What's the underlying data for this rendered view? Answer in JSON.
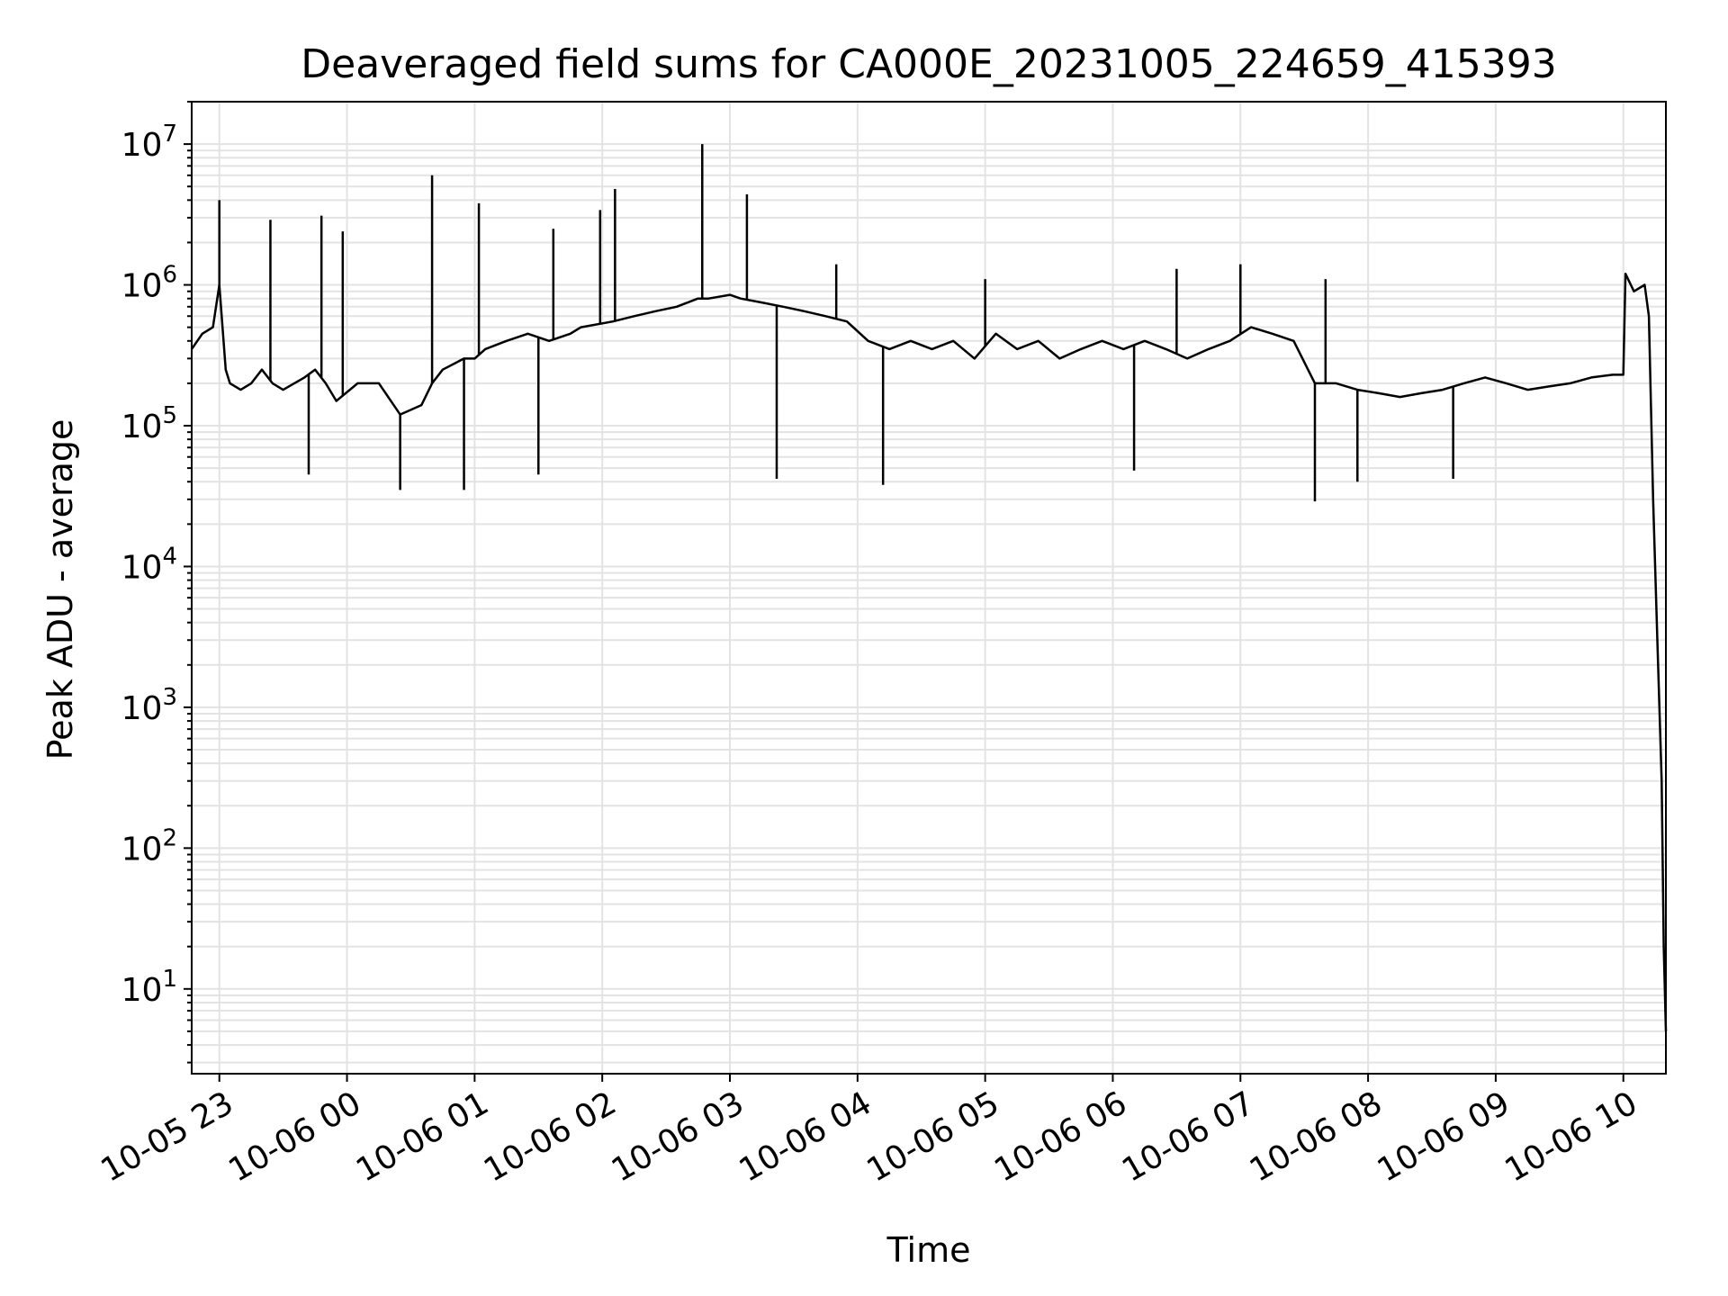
{
  "chart_data": {
    "type": "line",
    "title": "Deaveraged field sums for CA000E_20231005_224659_415393",
    "xlabel": "Time",
    "ylabel": "Peak ADU - average",
    "yscale": "log",
    "ylim": [
      2.5,
      20000000
    ],
    "xlim": [
      "2023-10-05 22:47",
      "2023-10-06 10:20"
    ],
    "grid": true,
    "line_color": "#000000",
    "grid_color": "#e3e3e3",
    "x_ticks": [
      "2023-10-05 23:00",
      "2023-10-06 00:00",
      "2023-10-06 01:00",
      "2023-10-06 02:00",
      "2023-10-06 03:00",
      "2023-10-06 04:00",
      "2023-10-06 05:00",
      "2023-10-06 06:00",
      "2023-10-06 07:00",
      "2023-10-06 08:00",
      "2023-10-06 09:00",
      "2023-10-06 10:00"
    ],
    "x_tick_labels": [
      "10-05 23",
      "10-06 00",
      "10-06 01",
      "10-06 02",
      "10-06 03",
      "10-06 04",
      "10-06 05",
      "10-06 06",
      "10-06 07",
      "10-06 08",
      "10-06 09",
      "10-06 10"
    ],
    "y_ticks": [
      10,
      100,
      1000,
      10000,
      100000,
      1000000,
      10000000
    ],
    "y_tick_labels": [
      {
        "base": "10",
        "exp": "1"
      },
      {
        "base": "10",
        "exp": "2"
      },
      {
        "base": "10",
        "exp": "3"
      },
      {
        "base": "10",
        "exp": "4"
      },
      {
        "base": "10",
        "exp": "5"
      },
      {
        "base": "10",
        "exp": "6"
      },
      {
        "base": "10",
        "exp": "7"
      }
    ],
    "series": [
      {
        "x": [
          "2023-10-05 22:47",
          "2023-10-05 22:52",
          "2023-10-05 22:57",
          "2023-10-05 23:00",
          "2023-10-05 23:03",
          "2023-10-05 23:05",
          "2023-10-05 23:10",
          "2023-10-05 23:15",
          "2023-10-05 23:20",
          "2023-10-05 23:25",
          "2023-10-05 23:30",
          "2023-10-05 23:40",
          "2023-10-05 23:45",
          "2023-10-05 23:50",
          "2023-10-05 23:55",
          "2023-10-06 00:05",
          "2023-10-06 00:15",
          "2023-10-06 00:25",
          "2023-10-06 00:35",
          "2023-10-06 00:40",
          "2023-10-06 00:45",
          "2023-10-06 00:55",
          "2023-10-06 01:00",
          "2023-10-06 01:05",
          "2023-10-06 01:15",
          "2023-10-06 01:25",
          "2023-10-06 01:35",
          "2023-10-06 01:45",
          "2023-10-06 01:50",
          "2023-10-06 02:05",
          "2023-10-06 02:15",
          "2023-10-06 02:25",
          "2023-10-06 02:35",
          "2023-10-06 02:45",
          "2023-10-06 02:50",
          "2023-10-06 03:00",
          "2023-10-06 03:05",
          "2023-10-06 03:15",
          "2023-10-06 03:25",
          "2023-10-06 03:35",
          "2023-10-06 03:45",
          "2023-10-06 03:55",
          "2023-10-06 04:05",
          "2023-10-06 04:15",
          "2023-10-06 04:25",
          "2023-10-06 04:35",
          "2023-10-06 04:45",
          "2023-10-06 04:55",
          "2023-10-06 05:05",
          "2023-10-06 05:15",
          "2023-10-06 05:25",
          "2023-10-06 05:35",
          "2023-10-06 05:45",
          "2023-10-06 05:55",
          "2023-10-06 06:05",
          "2023-10-06 06:15",
          "2023-10-06 06:25",
          "2023-10-06 06:35",
          "2023-10-06 06:45",
          "2023-10-06 06:55",
          "2023-10-06 07:05",
          "2023-10-06 07:15",
          "2023-10-06 07:25",
          "2023-10-06 07:35",
          "2023-10-06 07:45",
          "2023-10-06 07:55",
          "2023-10-06 08:05",
          "2023-10-06 08:15",
          "2023-10-06 08:25",
          "2023-10-06 08:35",
          "2023-10-06 08:45",
          "2023-10-06 08:55",
          "2023-10-06 09:05",
          "2023-10-06 09:15",
          "2023-10-06 09:25",
          "2023-10-06 09:35",
          "2023-10-06 09:45",
          "2023-10-06 09:55",
          "2023-10-06 10:00",
          "2023-10-06 10:01",
          "2023-10-06 10:05",
          "2023-10-06 10:10",
          "2023-10-06 10:12",
          "2023-10-06 10:14",
          "2023-10-06 10:16",
          "2023-10-06 10:18",
          "2023-10-06 10:19",
          "2023-10-06 10:20"
        ],
        "y": [
          350000,
          450000,
          500000,
          1000000,
          250000,
          200000,
          180000,
          200000,
          250000,
          200000,
          180000,
          220000,
          250000,
          200000,
          150000,
          200000,
          200000,
          120000,
          140000,
          200000,
          250000,
          300000,
          300000,
          350000,
          400000,
          450000,
          400000,
          450000,
          500000,
          550000,
          600000,
          650000,
          700000,
          800000,
          800000,
          850000,
          800000,
          750000,
          700000,
          650000,
          600000,
          550000,
          400000,
          350000,
          400000,
          350000,
          400000,
          300000,
          450000,
          350000,
          400000,
          300000,
          350000,
          400000,
          350000,
          400000,
          350000,
          300000,
          350000,
          400000,
          500000,
          450000,
          400000,
          200000,
          200000,
          180000,
          170000,
          160000,
          170000,
          180000,
          200000,
          220000,
          200000,
          180000,
          190000,
          200000,
          220000,
          230000,
          230000,
          1200000,
          900000,
          1000000,
          600000,
          30000,
          3000,
          300,
          20,
          5
        ],
        "spikes_high": [
          [
            "2023-10-05 23:00",
            4000000
          ],
          [
            "2023-10-05 23:24",
            2900000
          ],
          [
            "2023-10-05 23:48",
            3100000
          ],
          [
            "2023-10-05 23:58",
            2400000
          ],
          [
            "2023-10-06 00:40",
            6000000
          ],
          [
            "2023-10-06 01:02",
            3800000
          ],
          [
            "2023-10-06 01:37",
            2500000
          ],
          [
            "2023-10-06 01:59",
            3400000
          ],
          [
            "2023-10-06 02:06",
            4800000
          ],
          [
            "2023-10-06 02:47",
            10000000
          ],
          [
            "2023-10-06 03:08",
            4400000
          ],
          [
            "2023-10-06 03:50",
            1400000
          ],
          [
            "2023-10-06 05:00",
            1100000
          ],
          [
            "2023-10-06 06:30",
            1300000
          ],
          [
            "2023-10-06 07:00",
            1400000
          ],
          [
            "2023-10-06 07:40",
            1100000
          ]
        ],
        "spikes_low": [
          [
            "2023-10-05 23:42",
            45000
          ],
          [
            "2023-10-06 00:25",
            35000
          ],
          [
            "2023-10-06 00:55",
            35000
          ],
          [
            "2023-10-06 01:30",
            45000
          ],
          [
            "2023-10-06 03:22",
            42000
          ],
          [
            "2023-10-06 04:12",
            38000
          ],
          [
            "2023-10-06 06:10",
            48000
          ],
          [
            "2023-10-06 07:35",
            29000
          ],
          [
            "2023-10-06 07:55",
            40000
          ],
          [
            "2023-10-06 08:40",
            42000
          ]
        ]
      }
    ]
  }
}
